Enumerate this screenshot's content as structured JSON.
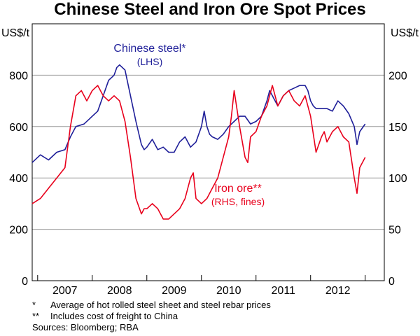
{
  "title": "Chinese Steel and Iron Ore Spot Prices",
  "chart_data": {
    "type": "line",
    "title": "Chinese Steel and Iron Ore Spot Prices",
    "left_axis": {
      "label": "US$/t",
      "ylim": [
        0,
        1000
      ],
      "ticks": [
        0,
        200,
        400,
        600,
        800
      ]
    },
    "right_axis": {
      "label": "US$/t",
      "ylim": [
        0,
        250
      ],
      "ticks": [
        0,
        50,
        100,
        150,
        200
      ]
    },
    "x_range": [
      2006.4,
      2012.85
    ],
    "x_ticks": [
      "2007",
      "2008",
      "2009",
      "2010",
      "2011",
      "2012"
    ],
    "x_tick_positions": [
      2007.0,
      2008.0,
      2009.0,
      2010.0,
      2011.0,
      2012.0
    ],
    "grid": true,
    "series": [
      {
        "name": "Chinese steel",
        "label_line1": "Chinese steel*",
        "label_line2": "(LHS)",
        "axis": "left",
        "color": "#1f1f99",
        "x": [
          2006.4,
          2006.55,
          2006.7,
          2006.85,
          2007.0,
          2007.1,
          2007.2,
          2007.35,
          2007.5,
          2007.6,
          2007.7,
          2007.8,
          2007.9,
          2007.95,
          2008.0,
          2008.1,
          2008.2,
          2008.3,
          2008.4,
          2008.45,
          2008.5,
          2008.6,
          2008.7,
          2008.8,
          2008.9,
          2009.0,
          2009.1,
          2009.2,
          2009.3,
          2009.4,
          2009.5,
          2009.55,
          2009.6,
          2009.65,
          2009.7,
          2009.8,
          2009.9,
          2010.0,
          2010.1,
          2010.2,
          2010.3,
          2010.4,
          2010.5,
          2010.6,
          2010.7,
          2010.75,
          2010.8,
          2010.9,
          2011.0,
          2011.1,
          2011.2,
          2011.3,
          2011.4,
          2011.45,
          2011.5,
          2011.55,
          2011.6,
          2011.7,
          2011.8,
          2011.9,
          2012.0,
          2012.1,
          2012.2,
          2012.3,
          2012.35,
          2012.4,
          2012.5
        ],
        "values": [
          460,
          490,
          470,
          500,
          510,
          560,
          600,
          610,
          640,
          660,
          720,
          780,
          800,
          830,
          840,
          820,
          720,
          620,
          530,
          510,
          520,
          550,
          510,
          520,
          500,
          500,
          540,
          560,
          520,
          540,
          600,
          660,
          600,
          570,
          560,
          550,
          570,
          600,
          620,
          640,
          640,
          610,
          620,
          640,
          700,
          740,
          720,
          680,
          720,
          740,
          750,
          760,
          760,
          740,
          700,
          680,
          670,
          670,
          670,
          660,
          700,
          680,
          650,
          600,
          530,
          580,
          610
        ]
      },
      {
        "name": "Iron ore",
        "label_line1": "Iron ore**",
        "label_line2": "(RHS, fines)",
        "axis": "right",
        "color": "#e8001c",
        "x": [
          2006.4,
          2006.55,
          2006.7,
          2006.85,
          2007.0,
          2007.1,
          2007.2,
          2007.3,
          2007.4,
          2007.5,
          2007.6,
          2007.7,
          2007.8,
          2007.9,
          2008.0,
          2008.1,
          2008.2,
          2008.3,
          2008.4,
          2008.45,
          2008.5,
          2008.6,
          2008.7,
          2008.8,
          2008.9,
          2009.0,
          2009.1,
          2009.2,
          2009.3,
          2009.35,
          2009.4,
          2009.5,
          2009.6,
          2009.7,
          2009.8,
          2009.9,
          2009.95,
          2010.0,
          2010.05,
          2010.1,
          2010.2,
          2010.3,
          2010.35,
          2010.4,
          2010.5,
          2010.6,
          2010.7,
          2010.8,
          2010.9,
          2011.0,
          2011.1,
          2011.2,
          2011.3,
          2011.4,
          2011.5,
          2011.6,
          2011.7,
          2011.75,
          2011.8,
          2011.9,
          2012.0,
          2012.1,
          2012.2,
          2012.3,
          2012.35,
          2012.4,
          2012.5
        ],
        "values": [
          75,
          80,
          90,
          100,
          110,
          150,
          180,
          185,
          175,
          185,
          190,
          180,
          175,
          180,
          175,
          155,
          120,
          80,
          65,
          70,
          70,
          75,
          70,
          60,
          60,
          65,
          70,
          80,
          100,
          105,
          80,
          75,
          80,
          90,
          100,
          120,
          130,
          140,
          160,
          185,
          150,
          120,
          115,
          140,
          145,
          160,
          170,
          190,
          170,
          180,
          185,
          175,
          170,
          180,
          160,
          125,
          140,
          145,
          135,
          145,
          150,
          140,
          135,
          100,
          85,
          110,
          120
        ]
      }
    ],
    "footnotes": [
      {
        "mark": "*",
        "text": "Average of hot rolled steel sheet and steel rebar prices"
      },
      {
        "mark": "**",
        "text": "Includes cost of freight to China"
      }
    ],
    "sources": "Sources: Bloomberg; RBA"
  }
}
